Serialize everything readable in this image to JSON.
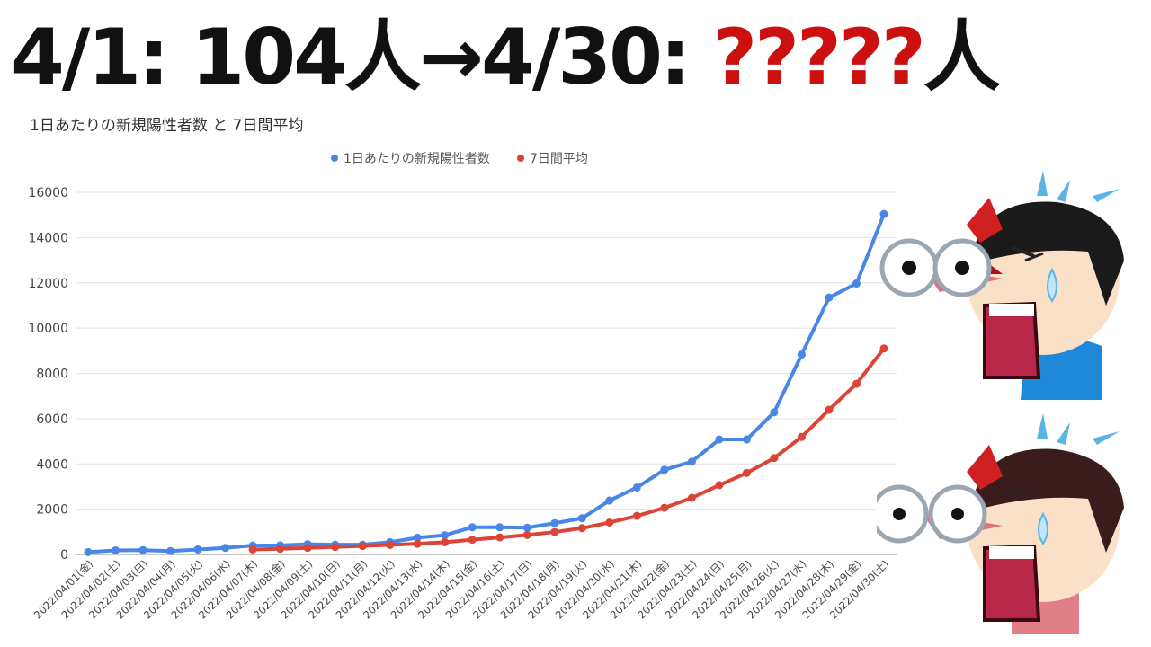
{
  "headline": {
    "part1": "4/1: 104人→4/30: ",
    "question": "?????",
    "part3": "人"
  },
  "colors": {
    "series1": "#4a86e8",
    "series2": "#db4437",
    "question_marks": "#cc1010"
  },
  "chart_data": {
    "type": "line",
    "title": "1日あたりの新規陽性者数 と 7日間平均",
    "legend_position": "top",
    "grid": true,
    "ylim": [
      0,
      16000
    ],
    "yticks": [
      0,
      2000,
      4000,
      6000,
      8000,
      10000,
      12000,
      14000,
      16000
    ],
    "x": [
      "2022/04/01(金)",
      "2022/04/02(土)",
      "2022/04/03(日)",
      "2022/04/04(月)",
      "2022/04/05(火)",
      "2022/04/06(水)",
      "2022/04/07(木)",
      "2022/04/08(金)",
      "2022/04/09(土)",
      "2022/04/10(日)",
      "2022/04/11(月)",
      "2022/04/12(火)",
      "2022/04/13(水)",
      "2022/04/14(木)",
      "2022/04/15(金)",
      "2022/04/16(土)",
      "2022/04/17(日)",
      "2022/04/18(月)",
      "2022/04/19(火)",
      "2022/04/20(水)",
      "2022/04/21(木)",
      "2022/04/22(金)",
      "2022/04/23(土)",
      "2022/04/24(日)",
      "2022/04/25(月)",
      "2022/04/26(火)",
      "2022/04/27(水)",
      "2022/04/28(木)",
      "2022/04/29(金)",
      "2022/04/30(土)"
    ],
    "series": [
      {
        "name": "1日あたりの新規陽性者数",
        "values": [
          104,
          180,
          190,
          150,
          220,
          290,
          390,
          400,
          450,
          430,
          430,
          540,
          740,
          850,
          1200,
          1200,
          1180,
          1380,
          1600,
          2380,
          2960,
          3740,
          4100,
          5080,
          5080,
          6280,
          8830,
          11350,
          11970,
          15040
        ]
      },
      {
        "name": "7日間平均",
        "values": [
          null,
          null,
          null,
          null,
          null,
          null,
          220,
          250,
          290,
          330,
          370,
          420,
          470,
          540,
          650,
          750,
          860,
          990,
          1160,
          1410,
          1700,
          2060,
          2500,
          3060,
          3600,
          4260,
          5190,
          6390,
          7540,
          9100
        ]
      }
    ]
  }
}
